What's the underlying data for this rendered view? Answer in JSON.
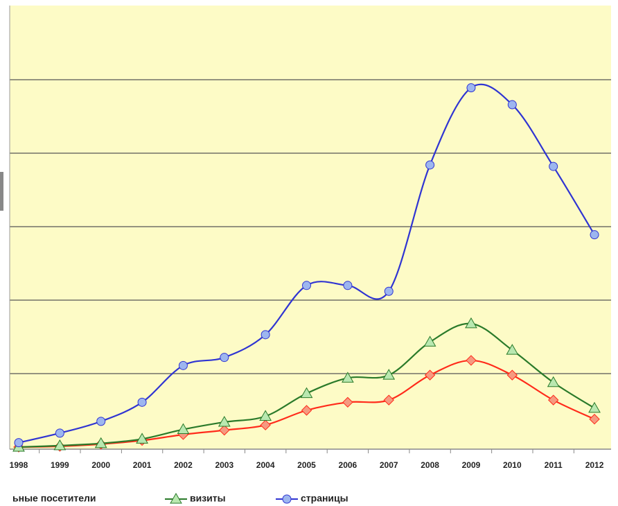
{
  "chart_data": {
    "type": "line",
    "categories": [
      "1998",
      "1999",
      "2000",
      "2001",
      "2002",
      "2003",
      "2004",
      "2005",
      "2006",
      "2007",
      "2008",
      "2009",
      "2010",
      "2011",
      "2012"
    ],
    "series": [
      {
        "name": "ьные посетители",
        "color": "#ff2a1a",
        "marker_fill": "#f59a80",
        "marker": "diamond",
        "values": [
          0,
          0.01,
          0.04,
          0.09,
          0.17,
          0.23,
          0.3,
          0.5,
          0.61,
          0.64,
          0.98,
          1.18,
          0.98,
          0.64,
          0.38
        ]
      },
      {
        "name": "визиты",
        "color": "#2a7a2a",
        "marker_fill": "#b9e8b0",
        "marker": "triangle",
        "values": [
          0,
          0.02,
          0.05,
          0.11,
          0.24,
          0.34,
          0.42,
          0.73,
          0.94,
          0.98,
          1.43,
          1.68,
          1.32,
          0.88,
          0.53
        ]
      },
      {
        "name": "страницы",
        "color": "#2f34d2",
        "marker_fill": "#9db6ef",
        "marker": "circle",
        "values": [
          0.06,
          0.19,
          0.35,
          0.61,
          1.11,
          1.22,
          1.53,
          2.2,
          2.2,
          2.12,
          3.84,
          4.89,
          4.66,
          3.82,
          2.89
        ]
      }
    ],
    "ylim": [
      0,
      6
    ],
    "yticks": [
      1,
      2,
      3,
      4,
      5
    ],
    "grid": true
  }
}
